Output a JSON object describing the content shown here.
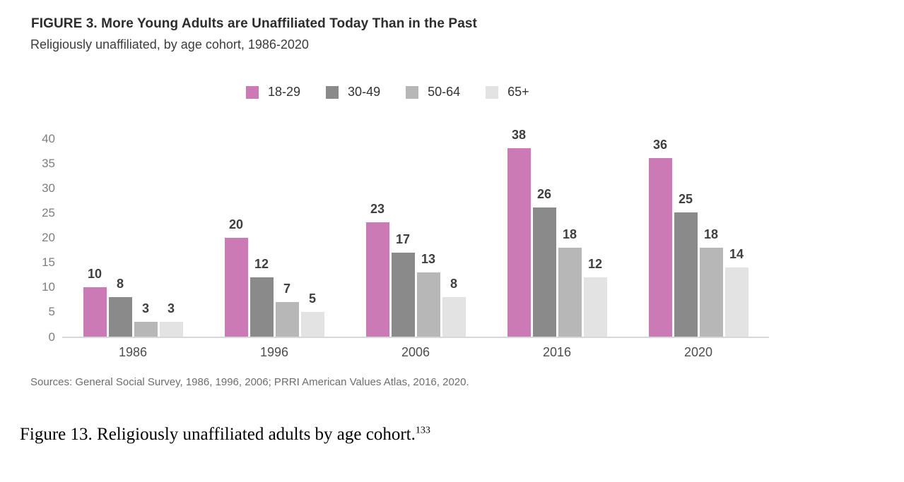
{
  "figure": {
    "title": "FIGURE 3. More Young Adults are Unaffiliated Today Than in the Past",
    "subtitle": "Religiously unaffiliated, by age cohort, 1986-2020",
    "sources": "Sources: General Social Survey, 1986, 1996, 2006; PRRI American Values Atlas, 2016, 2020."
  },
  "caption": {
    "text": "Figure 13. Religiously unaffiliated adults by age cohort.",
    "footnote": "133"
  },
  "colors": {
    "series_18_29": "#cb7ab5",
    "series_30_49": "#8a8a8a",
    "series_50_64": "#b7b7b7",
    "series_65_plus": "#e3e3e3",
    "axis_line": "#d8d8d8"
  },
  "chart_data": {
    "type": "bar",
    "title": "FIGURE 3. More Young Adults are Unaffiliated Today Than in the Past",
    "subtitle": "Religiously unaffiliated, by age cohort, 1986-2020",
    "categories": [
      "1986",
      "1996",
      "2006",
      "2016",
      "2020"
    ],
    "series": [
      {
        "name": "18-29",
        "color": "#cb7ab5",
        "values": [
          10,
          20,
          23,
          38,
          36
        ]
      },
      {
        "name": "30-49",
        "color": "#8a8a8a",
        "values": [
          8,
          12,
          17,
          26,
          25
        ]
      },
      {
        "name": "50-64",
        "color": "#b7b7b7",
        "values": [
          3,
          7,
          13,
          18,
          18
        ]
      },
      {
        "name": "65+",
        "color": "#e3e3e3",
        "values": [
          3,
          5,
          8,
          12,
          14
        ]
      }
    ],
    "xlabel": "",
    "ylabel": "",
    "ylim": [
      0,
      40
    ],
    "yticks": [
      0,
      5,
      10,
      15,
      20,
      25,
      30,
      35,
      40
    ],
    "grid": false,
    "legend_position": "top-center",
    "bar_value_labels": true
  }
}
